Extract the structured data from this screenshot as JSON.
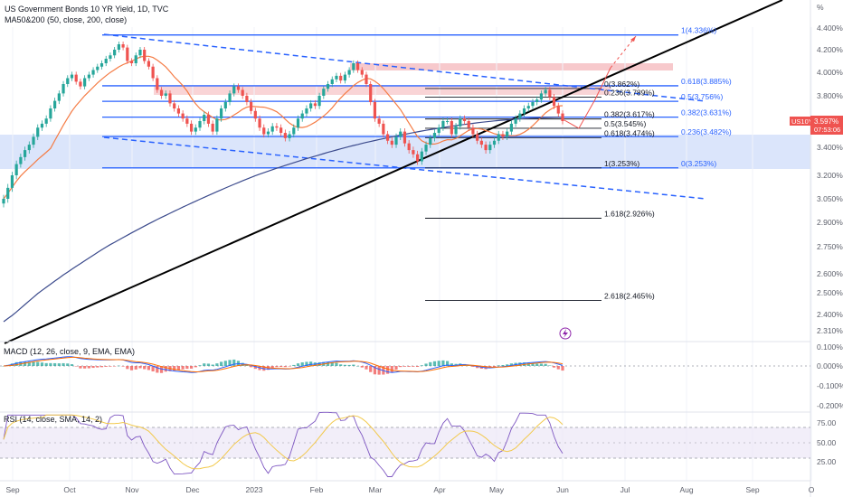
{
  "header": {
    "title": "US Government Bonds 10 YR Yield, 1D, TVC",
    "ma_label": "MA50&200 (50, close, 200, close)"
  },
  "price_badge": {
    "symbol": "US10Y",
    "price": "3.597%",
    "countdown": "07:53:06"
  },
  "colors": {
    "up": "#26a69a",
    "down": "#ef5350",
    "fib_blue": "#2962ff",
    "fib_black": "#131722",
    "ma50": "#f57c45",
    "ma200": "#3b4a8c",
    "zone_blue": "#dbe5fb",
    "zone_red": "#f7c9cc",
    "macd_line": "#2962ff",
    "signal_line": "#ff6d00",
    "rsi_line": "#7e57c2",
    "rsi_ma": "#f2c94c"
  },
  "chart_data": [
    {
      "type": "line",
      "title": "US Government Bonds 10 YR Yield, 1D, TVC",
      "x_ticks": [
        "Sep",
        "Oct",
        "Nov",
        "Dec",
        "2023",
        "Feb",
        "Mar",
        "Apr",
        "May",
        "Jun",
        "Jul",
        "Aug",
        "Sep",
        "O"
      ],
      "y_ticks": [
        "4.400%",
        "4.200%",
        "4.000%",
        "3.800%",
        "3.600%",
        "3.400%",
        "3.200%",
        "3.050%",
        "2.900%",
        "2.750%",
        "2.600%",
        "2.500%",
        "2.400%",
        "2.310%"
      ],
      "ylabel": "%",
      "series": [
        {
          "name": "US10Y",
          "values": [
            3.05,
            3.12,
            3.2,
            3.28,
            3.33,
            3.38,
            3.42,
            3.48,
            3.55,
            3.58,
            3.62,
            3.7,
            3.76,
            3.82,
            3.9,
            3.95,
            3.98,
            3.92,
            3.88,
            3.95,
            3.98,
            4.02,
            4.05,
            4.08,
            4.12,
            4.15,
            4.2,
            4.25,
            4.22,
            4.1,
            4.08,
            4.15,
            4.2,
            4.1,
            4.05,
            3.95,
            3.85,
            3.8,
            3.82,
            3.74,
            3.7,
            3.66,
            3.62,
            3.58,
            3.52,
            3.55,
            3.6,
            3.65,
            3.58,
            3.52,
            3.62,
            3.7,
            3.75,
            3.82,
            3.88,
            3.85,
            3.8,
            3.75,
            3.68,
            3.62,
            3.55,
            3.5,
            3.52,
            3.56,
            3.55,
            3.51,
            3.47,
            3.5,
            3.55,
            3.62,
            3.66,
            3.7,
            3.74,
            3.72,
            3.8,
            3.86,
            3.9,
            3.94,
            3.97,
            3.93,
            3.98,
            4.02,
            4.08,
            4.02,
            3.98,
            3.9,
            3.75,
            3.62,
            3.58,
            3.5,
            3.45,
            3.42,
            3.48,
            3.52,
            3.43,
            3.38,
            3.35,
            3.3,
            3.37,
            3.42,
            3.47,
            3.51,
            3.55,
            3.6,
            3.6,
            3.5,
            3.56,
            3.62,
            3.6,
            3.55,
            3.5,
            3.45,
            3.42,
            3.38,
            3.42,
            3.45,
            3.5,
            3.48,
            3.52,
            3.58,
            3.62,
            3.66,
            3.7,
            3.72,
            3.75,
            3.77,
            3.82,
            3.85,
            3.79,
            3.72,
            3.66,
            3.6
          ]
        },
        {
          "name": "MA50"
        },
        {
          "name": "MA200"
        }
      ]
    },
    {
      "type": "bar",
      "title": "MACD (12, 26, close, 9, EMA, EMA)",
      "y_ticks": [
        "0.100%",
        "0.000%",
        "-0.100%",
        "-0.200%"
      ]
    },
    {
      "type": "line",
      "title": "RSI (14, close, SMA, 14, 2)",
      "y_ticks": [
        "75.00",
        "50.00",
        "25.00"
      ]
    }
  ],
  "fib_left": [
    {
      "label": "0(3.862%)",
      "value": 3.862
    },
    {
      "label": "0.236(3.789%)",
      "value": 3.789
    },
    {
      "label": "0.382(3.617%)",
      "value": 3.617
    },
    {
      "label": "0.5(3.545%)",
      "value": 3.545
    },
    {
      "label": "0.618(3.474%)",
      "value": 3.474
    },
    {
      "label": "1(3.253%)",
      "value": 3.253
    },
    {
      "label": "1.618(2.926%)",
      "value": 2.926
    },
    {
      "label": "2.618(2.465%)",
      "value": 2.465
    }
  ],
  "fib_right": [
    {
      "label": "1(4.336%)",
      "value": 4.336
    },
    {
      "label": "0.618(3.885%)",
      "value": 3.885
    },
    {
      "label": "0.5(3.756%)",
      "value": 3.756
    },
    {
      "label": "0.382(3.631%)",
      "value": 3.631
    },
    {
      "label": "0.236(3.482%)",
      "value": 3.482
    },
    {
      "label": "0(3.253%)",
      "value": 3.253
    }
  ]
}
